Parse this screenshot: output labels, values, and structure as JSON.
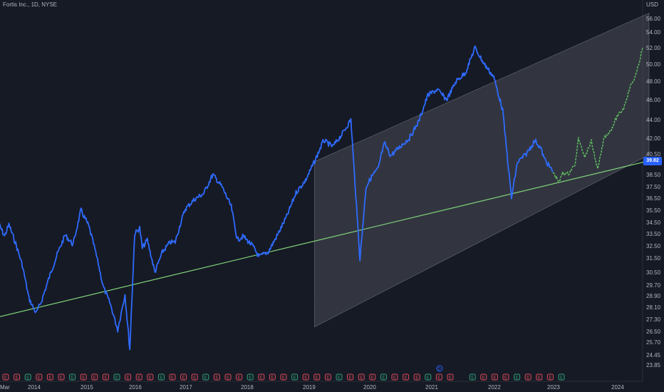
{
  "title": "Fortis Inc., 1D, NYSE",
  "currency": "USD",
  "last_price": "39.82",
  "colors": {
    "background": "#161a25",
    "history_line": "#2f6bff",
    "projection_line": "#62c462",
    "trendline": "#7fd37a",
    "channel_fill": "#4a4d57",
    "earnings_red": "#e04a5a",
    "earnings_green": "#2fa37a",
    "dividend_blue": "#2962ff",
    "earnings_purple": "#b24bd6"
  },
  "chart_data": {
    "type": "line",
    "y_ticks": [
      "56.00",
      "54.00",
      "52.00",
      "50.00",
      "48.00",
      "46.00",
      "44.00",
      "42.00",
      "40.50",
      "39.50",
      "38.50",
      "37.50",
      "36.50",
      "35.50",
      "34.50",
      "33.50",
      "32.50",
      "31.50",
      "30.50",
      "29.70",
      "28.90",
      "28.10",
      "27.30",
      "26.50",
      "25.70",
      "24.45",
      "23.85"
    ],
    "x_ticks": [
      "Mar",
      "2014",
      "2015",
      "2016",
      "2017",
      "2018",
      "2019",
      "2020",
      "2021",
      "2022",
      "2023",
      "2024"
    ],
    "series": [
      {
        "x": [
          2013.2,
          2013.35,
          2013.45,
          2013.6,
          2013.75,
          2013.9,
          2014.05,
          2014.15,
          2014.3,
          2014.45,
          2014.6,
          2014.75,
          2014.9,
          2015.05,
          2015.15,
          2015.25,
          2015.35,
          2015.5,
          2015.65,
          2015.8,
          2015.9,
          2016.0,
          2016.1,
          2016.15,
          2016.25,
          2016.4,
          2016.55,
          2016.7,
          2016.8,
          2016.9,
          2017.0,
          2017.15,
          2017.3,
          2017.45,
          2017.6,
          2017.75,
          2017.85,
          2017.95,
          2018.0,
          2018.1,
          2018.2,
          2018.35,
          2018.5,
          2018.65,
          2018.8,
          2018.95,
          2019.1,
          2019.25,
          2019.4,
          2019.55,
          2019.7,
          2019.85,
          2019.95,
          2020.05,
          2020.15,
          2020.2,
          2020.25,
          2020.35,
          2020.5,
          2020.65,
          2020.8,
          2020.95,
          2021.1,
          2021.25,
          2021.4,
          2021.55,
          2021.7,
          2021.85,
          2022.0,
          2022.15,
          2022.3,
          2022.4,
          2022.55,
          2022.7,
          2022.8,
          2022.85,
          2022.9,
          2023.0
        ],
        "y": [
          34.6,
          33.3,
          34.3,
          32.7,
          31.0,
          28.7,
          27.7,
          28.5,
          30.2,
          31.8,
          33.4,
          32.6,
          35.5,
          34.2,
          32.7,
          31.1,
          29.6,
          28.3,
          26.6,
          29.0,
          25.0,
          33.5,
          34.0,
          32.3,
          33.0,
          30.5,
          32.0,
          32.8,
          32.8,
          34.3,
          35.6,
          36.4,
          36.9,
          38.5,
          37.5,
          35.8,
          33.0,
          33.3,
          33.0,
          32.5,
          31.6,
          32.0,
          33.4,
          35.0,
          37.0,
          38.0,
          39.6,
          41.8,
          41.2,
          42.4,
          44.0,
          31.4,
          37.5,
          38.4,
          39.0,
          40.5,
          41.5,
          40.3,
          41.2,
          42.0,
          43.8,
          46.5,
          47.1,
          46.0,
          48.0,
          49.0,
          52.0,
          50.0,
          48.5,
          45.0,
          36.5,
          39.5,
          40.5,
          41.8,
          41.0,
          40.0,
          39.5,
          38.7
        ],
        "color": "#2f6bff"
      },
      {
        "x": [
          2023.0,
          2023.1,
          2023.15,
          2023.25,
          2023.35,
          2023.4,
          2023.5,
          2023.6,
          2023.7,
          2023.8,
          2023.9,
          2024.0,
          2024.1,
          2024.2,
          2024.3,
          2024.4
        ],
        "y": [
          38.7,
          37.9,
          38.6,
          38.6,
          39.4,
          42.0,
          40.2,
          41.7,
          38.9,
          42.1,
          42.8,
          44.3,
          45.1,
          47.3,
          48.8,
          52.0
        ],
        "color": "#62c462"
      }
    ],
    "trendline": {
      "x": [
        2013.0,
        2024.5
      ],
      "y": [
        27.3,
        39.7
      ],
      "color": "#7fd37a"
    },
    "channel": {
      "upper": {
        "x": [
          2019.1,
          2024.5
        ],
        "y": [
          39.6,
          56.8
        ]
      },
      "lower": {
        "x": [
          2019.1,
          2024.5
        ],
        "y": [
          26.8,
          40.4
        ]
      }
    }
  },
  "events": [
    "E",
    "E",
    "E",
    "E",
    "E",
    "E",
    "E",
    "E",
    "E",
    "E",
    "E",
    "E",
    "E",
    "E",
    "E",
    "E",
    "E",
    "E",
    "E",
    "E",
    "E",
    "E",
    "E",
    "E",
    "E",
    "E",
    "E",
    "E",
    "E",
    "E",
    "E",
    "E",
    "E",
    "E",
    "E",
    "E",
    "E",
    "E",
    "E",
    "E",
    "E",
    "D",
    "E",
    "E",
    "E",
    "E",
    "E",
    "E",
    "E",
    "E",
    "E",
    "E"
  ]
}
